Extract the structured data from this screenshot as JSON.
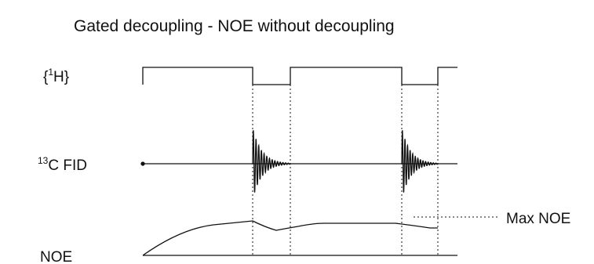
{
  "title": "Gated decoupling - NOE without decoupling",
  "rows": {
    "h_label_open": "{",
    "h_sup": "1",
    "h_label_close": "H}",
    "fid_sup": "13",
    "fid_label": "C FID",
    "noe_label": "NOE"
  },
  "annotation": {
    "max_noe": "Max NOE"
  },
  "colors": {
    "line": "#111111"
  }
}
